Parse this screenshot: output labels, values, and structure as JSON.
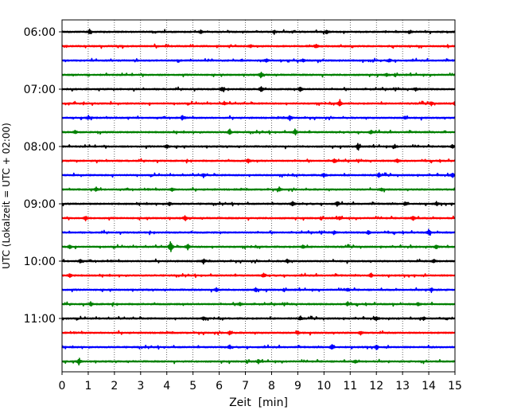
{
  "chart_data": {
    "type": "line",
    "title": "",
    "xlabel": "Zeit  [min]",
    "ylabel": "UTC (Lokalzeit = UTC + 02:00)",
    "xlim": [
      0,
      15
    ],
    "x_ticks": [
      "0",
      "1",
      "2",
      "3",
      "4",
      "5",
      "6",
      "7",
      "8",
      "9",
      "10",
      "11",
      "12",
      "13",
      "14",
      "15"
    ],
    "y_ticks": [
      "06:00",
      "07:00",
      "08:00",
      "09:00",
      "10:00",
      "11:00"
    ],
    "grid": "vertical dotted at each minute",
    "trace_minutes": 15,
    "trace_colors": [
      "#000000",
      "#ff0000",
      "#0000ff",
      "#008000"
    ],
    "traces": [
      {
        "start": "06:00",
        "color": "#000000",
        "events": [
          {
            "t": 1.05,
            "a": 0.35
          },
          {
            "t": 5.3,
            "a": 0.3
          },
          {
            "t": 8.1,
            "a": 0.3
          },
          {
            "t": 10.1,
            "a": 0.3
          },
          {
            "t": 13.3,
            "a": 0.25
          }
        ]
      },
      {
        "start": "06:15",
        "color": "#ff0000",
        "events": [
          {
            "t": 7.2,
            "a": 0.25
          },
          {
            "t": 9.7,
            "a": 0.4
          }
        ]
      },
      {
        "start": "06:30",
        "color": "#0000ff",
        "events": [
          {
            "t": 7.8,
            "a": 0.25
          },
          {
            "t": 9.2,
            "a": 0.35
          },
          {
            "t": 12.5,
            "a": 0.3
          }
        ]
      },
      {
        "start": "06:45",
        "color": "#008000",
        "events": [
          {
            "t": 7.6,
            "a": 0.5
          },
          {
            "t": 12.4,
            "a": 0.25
          }
        ]
      },
      {
        "start": "07:00",
        "color": "#000000",
        "events": [
          {
            "t": 6.1,
            "a": 0.4
          },
          {
            "t": 7.6,
            "a": 0.6
          },
          {
            "t": 9.1,
            "a": 0.4
          },
          {
            "t": 13.5,
            "a": 0.3
          }
        ]
      },
      {
        "start": "07:15",
        "color": "#ff0000",
        "events": [
          {
            "t": 6.2,
            "a": 0.3
          },
          {
            "t": 10.6,
            "a": 0.65
          },
          {
            "t": 14.1,
            "a": 0.3
          },
          {
            "t": 15.0,
            "a": 0.3
          }
        ]
      },
      {
        "start": "07:30",
        "color": "#0000ff",
        "events": [
          {
            "t": 1.0,
            "a": 0.3
          },
          {
            "t": 4.6,
            "a": 0.35
          },
          {
            "t": 8.7,
            "a": 0.5
          },
          {
            "t": 13.1,
            "a": 0.3
          }
        ]
      },
      {
        "start": "07:45",
        "color": "#008000",
        "events": [
          {
            "t": 0.5,
            "a": 0.3
          },
          {
            "t": 6.4,
            "a": 0.55
          },
          {
            "t": 8.9,
            "a": 0.55
          },
          {
            "t": 11.8,
            "a": 0.3
          }
        ]
      },
      {
        "start": "08:00",
        "color": "#000000",
        "events": [
          {
            "t": 4.0,
            "a": 0.35
          },
          {
            "t": 11.3,
            "a": 0.45
          },
          {
            "t": 12.7,
            "a": 0.3
          },
          {
            "t": 14.9,
            "a": 0.3
          }
        ]
      },
      {
        "start": "08:15",
        "color": "#ff0000",
        "events": [
          {
            "t": 7.1,
            "a": 0.4
          },
          {
            "t": 10.4,
            "a": 0.45
          },
          {
            "t": 12.8,
            "a": 0.3
          }
        ]
      },
      {
        "start": "08:30",
        "color": "#0000ff",
        "events": [
          {
            "t": 5.4,
            "a": 0.3
          },
          {
            "t": 10.0,
            "a": 0.4
          },
          {
            "t": 12.1,
            "a": 0.35
          },
          {
            "t": 14.9,
            "a": 0.4
          }
        ]
      },
      {
        "start": "08:45",
        "color": "#008000",
        "events": [
          {
            "t": 1.3,
            "a": 0.35
          },
          {
            "t": 4.2,
            "a": 0.3
          },
          {
            "t": 8.3,
            "a": 0.35
          },
          {
            "t": 12.2,
            "a": 0.3
          }
        ]
      },
      {
        "start": "09:00",
        "color": "#000000",
        "events": [
          {
            "t": 4.1,
            "a": 0.3
          },
          {
            "t": 8.8,
            "a": 0.45
          },
          {
            "t": 10.5,
            "a": 0.35
          },
          {
            "t": 13.1,
            "a": 0.3
          },
          {
            "t": 14.3,
            "a": 0.3
          }
        ]
      },
      {
        "start": "09:15",
        "color": "#ff0000",
        "events": [
          {
            "t": 0.9,
            "a": 0.35
          },
          {
            "t": 4.7,
            "a": 0.4
          },
          {
            "t": 10.6,
            "a": 0.3
          },
          {
            "t": 13.4,
            "a": 0.45
          }
        ]
      },
      {
        "start": "09:30",
        "color": "#0000ff",
        "events": [
          {
            "t": 10.4,
            "a": 0.35
          },
          {
            "t": 11.7,
            "a": 0.35
          },
          {
            "t": 14.0,
            "a": 0.5
          }
        ]
      },
      {
        "start": "09:45",
        "color": "#008000",
        "events": [
          {
            "t": 0.3,
            "a": 0.3
          },
          {
            "t": 4.15,
            "a": 1.2
          },
          {
            "t": 4.8,
            "a": 0.5
          },
          {
            "t": 9.2,
            "a": 0.3
          },
          {
            "t": 14.3,
            "a": 0.35
          }
        ]
      },
      {
        "start": "10:00",
        "color": "#000000",
        "events": [
          {
            "t": 0.7,
            "a": 0.3
          },
          {
            "t": 5.4,
            "a": 0.35
          },
          {
            "t": 8.6,
            "a": 0.35
          },
          {
            "t": 14.2,
            "a": 0.3
          }
        ]
      },
      {
        "start": "10:15",
        "color": "#ff0000",
        "events": [
          {
            "t": 0.3,
            "a": 0.35
          },
          {
            "t": 7.7,
            "a": 0.35
          },
          {
            "t": 11.8,
            "a": 0.3
          }
        ]
      },
      {
        "start": "10:30",
        "color": "#0000ff",
        "events": [
          {
            "t": 5.9,
            "a": 0.4
          },
          {
            "t": 7.4,
            "a": 0.35
          },
          {
            "t": 10.9,
            "a": 0.3
          },
          {
            "t": 14.1,
            "a": 0.35
          }
        ]
      },
      {
        "start": "10:45",
        "color": "#008000",
        "events": [
          {
            "t": 1.1,
            "a": 0.35
          },
          {
            "t": 6.8,
            "a": 0.3
          },
          {
            "t": 10.9,
            "a": 0.3
          },
          {
            "t": 13.6,
            "a": 0.3
          }
        ]
      },
      {
        "start": "11:00",
        "color": "#000000",
        "events": [
          {
            "t": 5.4,
            "a": 0.3
          },
          {
            "t": 9.1,
            "a": 0.35
          },
          {
            "t": 12.0,
            "a": 0.35
          },
          {
            "t": 13.8,
            "a": 0.3
          }
        ]
      },
      {
        "start": "11:15",
        "color": "#ff0000",
        "events": [
          {
            "t": 6.4,
            "a": 0.35
          },
          {
            "t": 9.0,
            "a": 0.3
          },
          {
            "t": 11.4,
            "a": 0.3
          }
        ]
      },
      {
        "start": "11:30",
        "color": "#0000ff",
        "events": [
          {
            "t": 6.4,
            "a": 0.35
          },
          {
            "t": 10.3,
            "a": 0.45
          },
          {
            "t": 12.0,
            "a": 0.35
          }
        ]
      },
      {
        "start": "11:45",
        "color": "#008000",
        "events": [
          {
            "t": 0.65,
            "a": 0.6
          },
          {
            "t": 7.5,
            "a": 0.3
          },
          {
            "t": 11.2,
            "a": 0.3
          }
        ]
      }
    ]
  }
}
